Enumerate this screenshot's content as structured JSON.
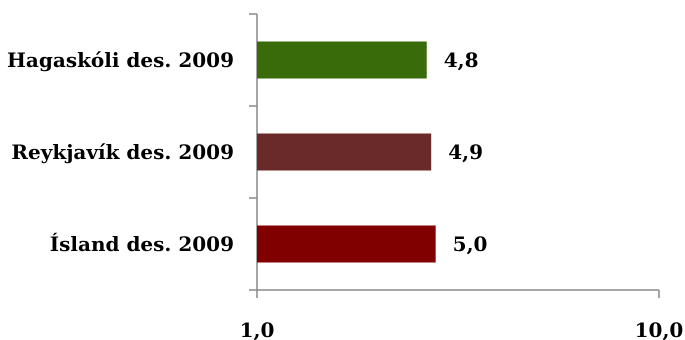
{
  "chart_data": {
    "type": "bar",
    "orientation": "horizontal",
    "categories": [
      "Hagaskóli des. 2009",
      "Reykjavík des. 2009",
      "Ísland des. 2009"
    ],
    "values": [
      4.8,
      4.9,
      5.0
    ],
    "value_labels": [
      "4,8",
      "4,9",
      "5,0"
    ],
    "colors": [
      "#3a6b0b",
      "#6b2a2a",
      "#800000"
    ],
    "xlim": [
      1.0,
      10.0
    ],
    "x_tick_labels": [
      "1,0",
      "10,0"
    ],
    "title": "",
    "xlabel": "",
    "ylabel": "",
    "grid": false,
    "legend": false
  }
}
